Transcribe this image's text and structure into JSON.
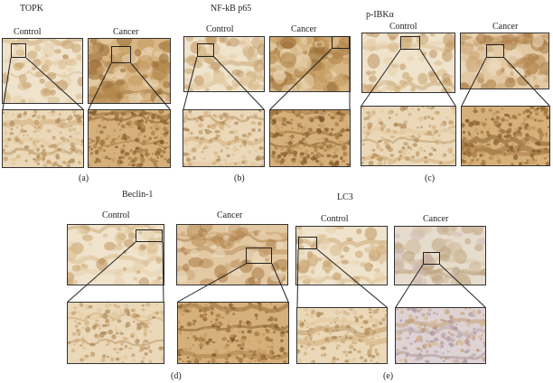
{
  "panels": {
    "a": {
      "title": "TOPK",
      "control": "Control",
      "cancer": "Cancer",
      "caption": "(a)"
    },
    "b": {
      "title": "NF-kB p65",
      "control": "Control",
      "cancer": "Cancer",
      "caption": "(b)"
    },
    "c": {
      "title": "p-IBKα",
      "control": "Control",
      "cancer": "Cancer",
      "caption": "(c)"
    },
    "d": {
      "title": "Beclin-1",
      "control": "Control",
      "cancer": "Cancer",
      "caption": "(d)"
    },
    "e": {
      "title": "LC3",
      "control": "Control",
      "cancer": "Cancer",
      "caption": "(e)"
    }
  }
}
